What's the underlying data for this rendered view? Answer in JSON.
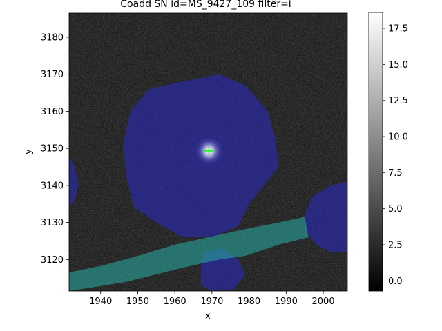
{
  "chart_data": {
    "type": "heatmap",
    "title": "Coadd SN id=MS_9427_109 filter=i",
    "xlabel": "x",
    "ylabel": "y",
    "xlim": [
      1931.5,
      2006.5
    ],
    "ylim": [
      3111.5,
      3186.5
    ],
    "x_ticks": [
      1940,
      1950,
      1960,
      1970,
      1980,
      1990,
      2000
    ],
    "y_ticks": [
      3120,
      3130,
      3140,
      3150,
      3160,
      3170,
      3180
    ],
    "colormap": "gray",
    "colorbar": {
      "range": [
        -0.7,
        18.6
      ],
      "ticks": [
        0.0,
        2.5,
        5.0,
        7.5,
        10.0,
        12.5,
        15.0,
        17.5
      ],
      "tick_labels": [
        "0.0",
        "2.5",
        "5.0",
        "7.5",
        "10.0",
        "12.5",
        "15.0",
        "17.5"
      ]
    },
    "peak": {
      "x": 1969.2,
      "y": 3149.3
    },
    "marker": {
      "type": "plus",
      "color": "#00ff00",
      "x": 1969.2,
      "y": 3149.3
    },
    "mask_regions": [
      {
        "label": "",
        "color": "#2a2ab4",
        "shape": "blob",
        "center": [
          1969.5,
          3148.5
        ]
      },
      {
        "label": "",
        "color": "#2a2ab4",
        "shape": "blob",
        "center": [
          2003,
          3131
        ]
      },
      {
        "label": "",
        "color": "#2a2ab4",
        "shape": "blob",
        "center": [
          1932,
          3142
        ]
      },
      {
        "label": "",
        "color": "#2a2ab4",
        "shape": "blob",
        "center": [
          1971,
          3115
        ]
      },
      {
        "label": "",
        "color": "#2aa8a0",
        "shape": "band",
        "from": [
          1931.5,
          3114.5
        ],
        "to": [
          1997,
          3129
        ]
      }
    ]
  }
}
